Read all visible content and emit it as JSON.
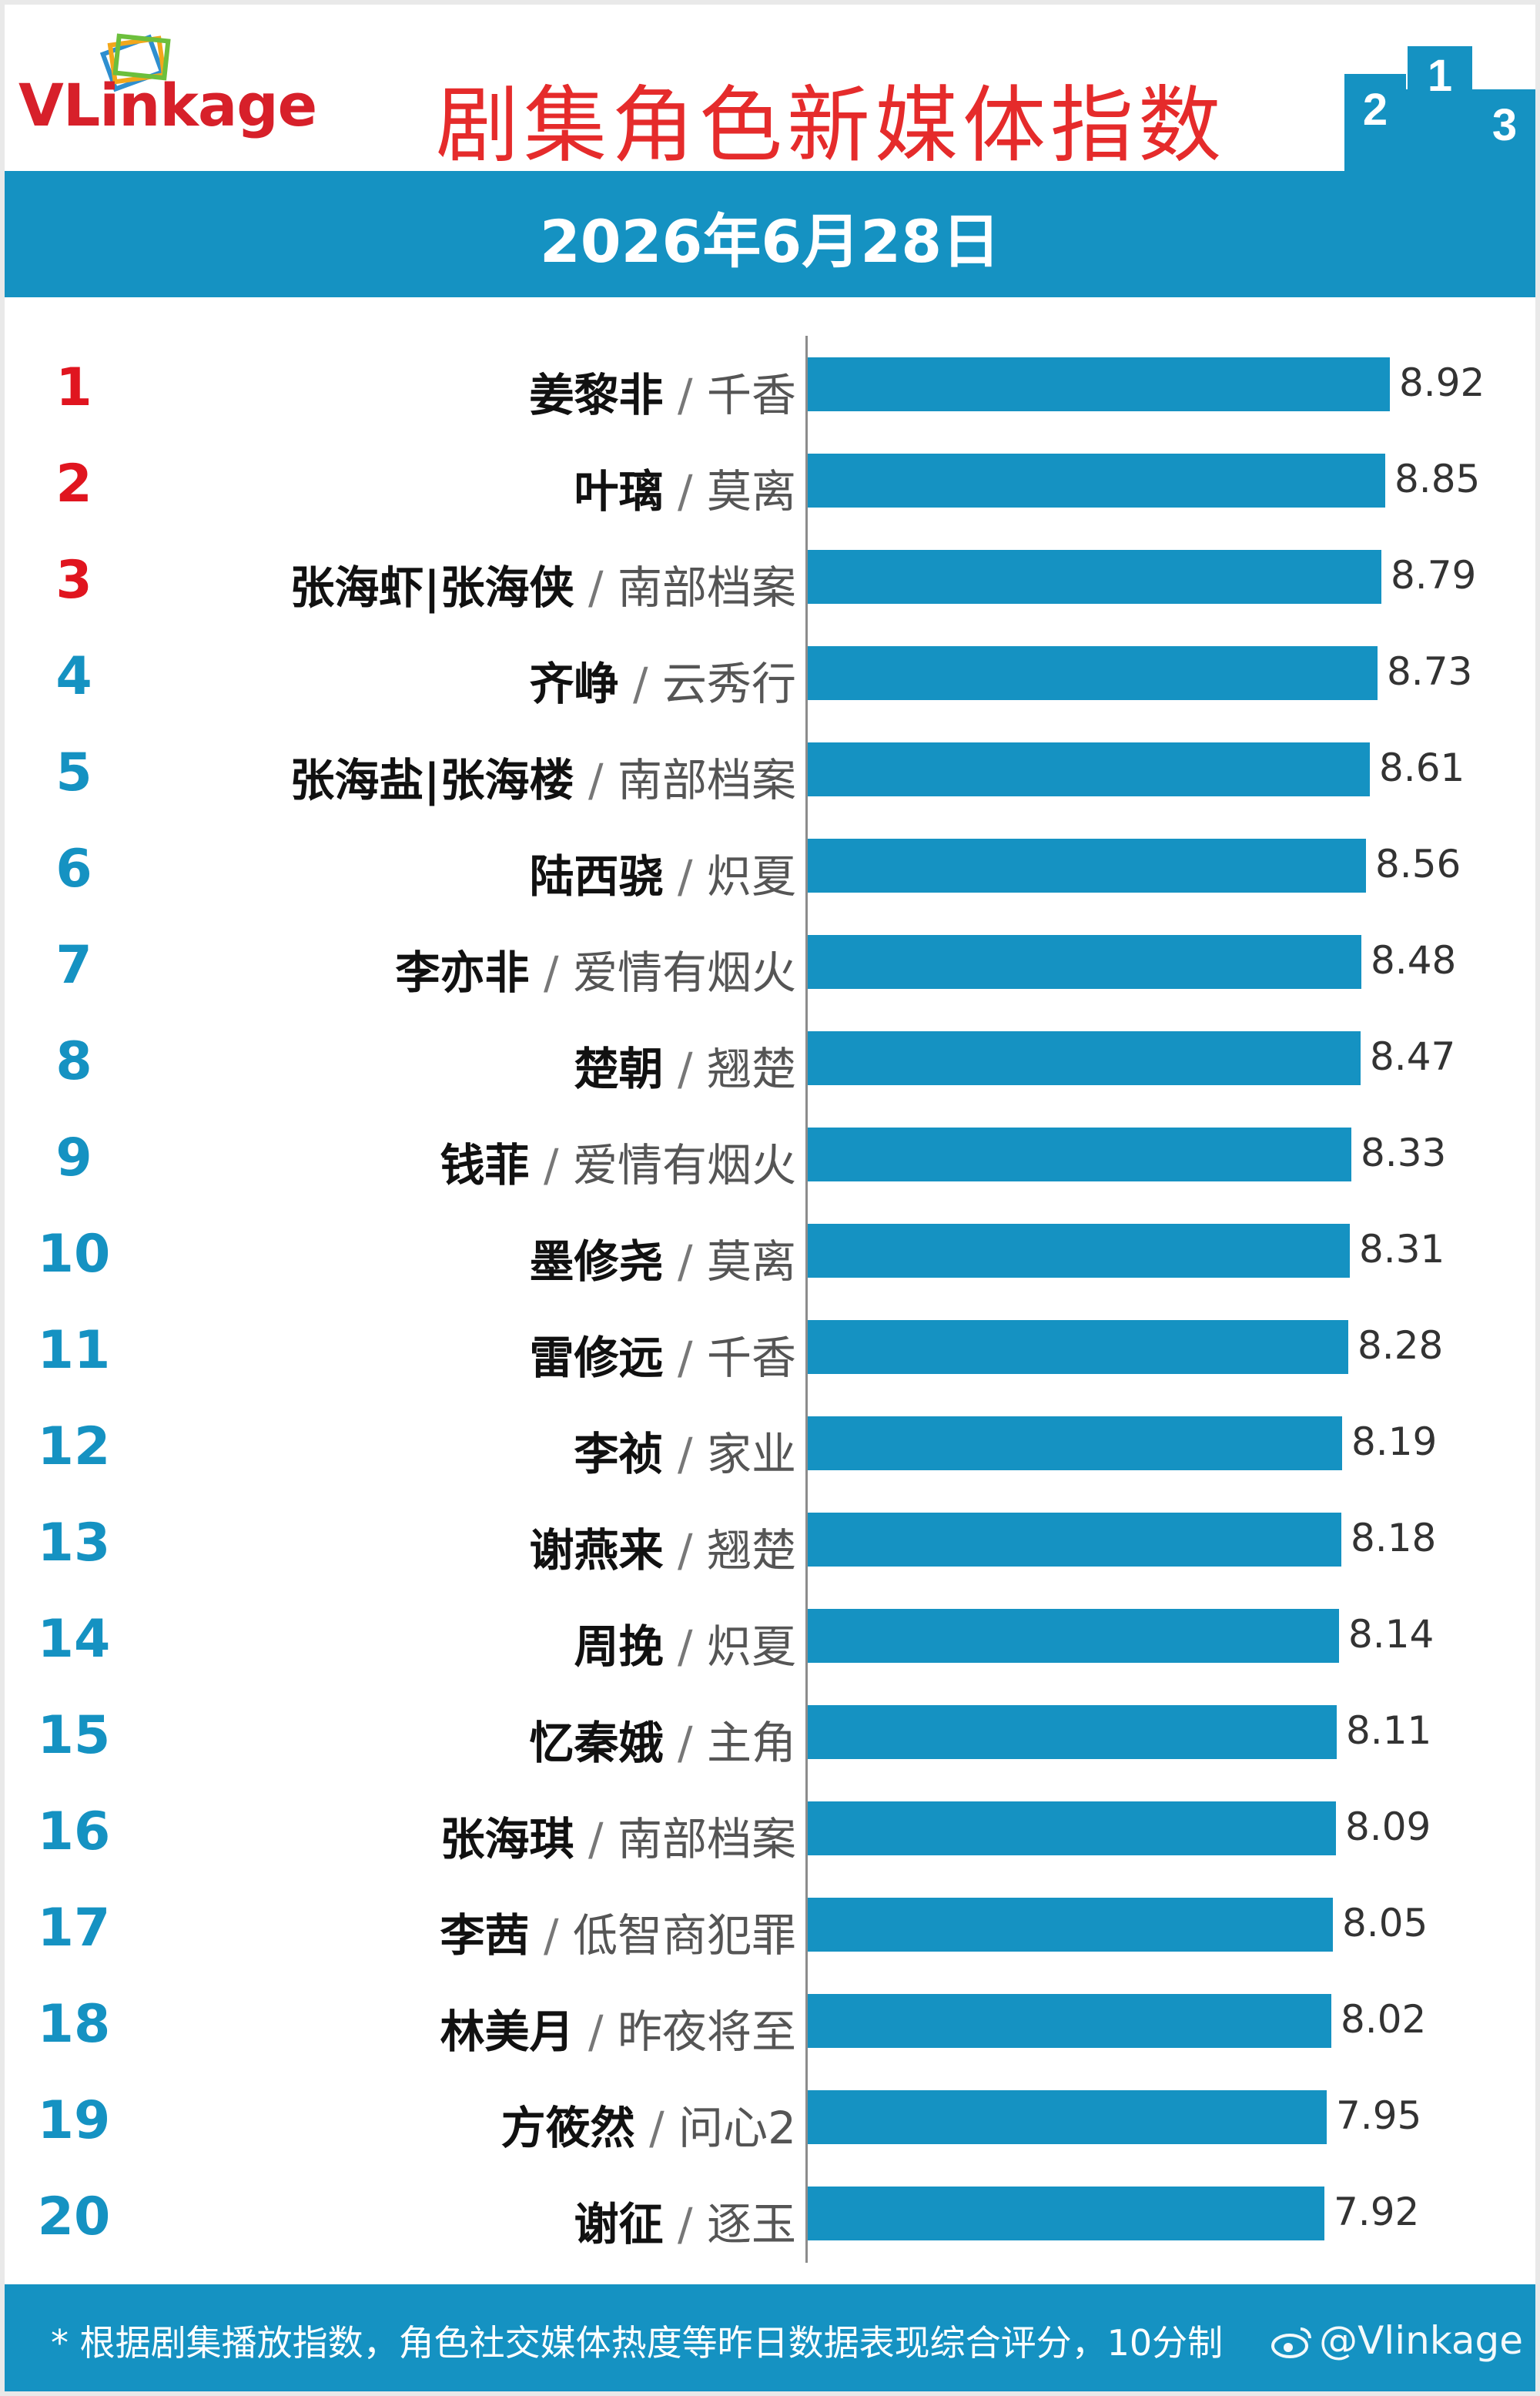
{
  "header": {
    "logo_text": "VLinkage",
    "title": "剧集角色新媒体指数",
    "date": "2026年6月28日",
    "brand_color": "#d7202a",
    "accent_color": "#1592c2"
  },
  "footer": {
    "note": "* 根据剧集播放指数，角色社交媒体热度等昨日数据表现综合评分，10分制",
    "watermark": "@Vlinkage",
    "watermark_icon": "weibo-icon"
  },
  "chart_data": {
    "type": "bar",
    "orientation": "horizontal",
    "title": "剧集角色新媒体指数",
    "xlim": [
      0,
      8.92
    ],
    "grid": false,
    "legend": "none",
    "rows": [
      {
        "rank": "1",
        "name": "姜黎非",
        "drama": "千香",
        "value": 8.92
      },
      {
        "rank": "2",
        "name": "叶璃",
        "drama": "莫离",
        "value": 8.85
      },
      {
        "rank": "3",
        "name": "张海虾|张海侠",
        "drama": "南部档案",
        "value": 8.79
      },
      {
        "rank": "4",
        "name": "齐峥",
        "drama": "云秀行",
        "value": 8.73
      },
      {
        "rank": "5",
        "name": "张海盐|张海楼",
        "drama": "南部档案",
        "value": 8.61
      },
      {
        "rank": "6",
        "name": "陆西骁",
        "drama": "炽夏",
        "value": 8.56
      },
      {
        "rank": "7",
        "name": "李亦非",
        "drama": "爱情有烟火",
        "value": 8.48
      },
      {
        "rank": "8",
        "name": "楚朝",
        "drama": "翘楚",
        "value": 8.47
      },
      {
        "rank": "9",
        "name": "钱菲",
        "drama": "爱情有烟火",
        "value": 8.33
      },
      {
        "rank": "10",
        "name": "墨修尧",
        "drama": "莫离",
        "value": 8.31
      },
      {
        "rank": "11",
        "name": "雷修远",
        "drama": "千香",
        "value": 8.28
      },
      {
        "rank": "12",
        "name": "李祯",
        "drama": "家业",
        "value": 8.19
      },
      {
        "rank": "13",
        "name": "谢燕来",
        "drama": "翘楚",
        "value": 8.18
      },
      {
        "rank": "14",
        "name": "周挽",
        "drama": "炽夏",
        "value": 8.14
      },
      {
        "rank": "15",
        "name": "忆秦娥",
        "drama": "主角",
        "value": 8.11
      },
      {
        "rank": "16",
        "name": "张海琪",
        "drama": "南部档案",
        "value": 8.09
      },
      {
        "rank": "17",
        "name": "李茜",
        "drama": "低智商犯罪",
        "value": 8.05
      },
      {
        "rank": "18",
        "name": "林美月",
        "drama": "昨夜将至",
        "value": 8.02
      },
      {
        "rank": "19",
        "name": "方筱然",
        "drama": "问心2",
        "value": 7.95
      },
      {
        "rank": "20",
        "name": "谢征",
        "drama": "逐玉",
        "value": 7.92
      }
    ]
  }
}
